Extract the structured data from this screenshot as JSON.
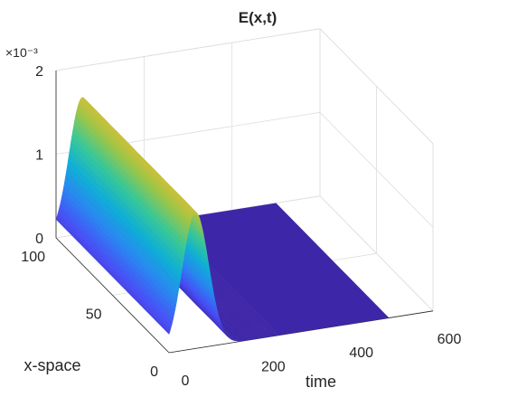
{
  "chart_data": {
    "type": "surface",
    "title": "E(x,t)",
    "xlabel": "time",
    "ylabel": "x-space",
    "zlabel": "",
    "z_exponent_label": "×10⁻³",
    "x_range": [
      0,
      600
    ],
    "y_range": [
      0,
      100
    ],
    "z_range": [
      0,
      0.002
    ],
    "x_ticks": [
      {
        "value": 0,
        "label": "0"
      },
      {
        "value": 200,
        "label": "200"
      },
      {
        "value": 400,
        "label": "400"
      },
      {
        "value": 600,
        "label": "600"
      }
    ],
    "y_ticks": [
      {
        "value": 0,
        "label": "0"
      },
      {
        "value": 50,
        "label": "50"
      },
      {
        "value": 100,
        "label": "100"
      }
    ],
    "z_ticks": [
      {
        "value": 0,
        "label": "0"
      },
      {
        "value": 0.001,
        "label": "1"
      },
      {
        "value": 0.002,
        "label": "2"
      }
    ],
    "data_extent_time": [
      0,
      500
    ],
    "pulse": {
      "shape": "gaussian in time, uniform in x-space",
      "peak_time": 60,
      "peak_value": 0.00163,
      "sigma_time": 30
    },
    "grid": true,
    "colormap": "parula"
  }
}
